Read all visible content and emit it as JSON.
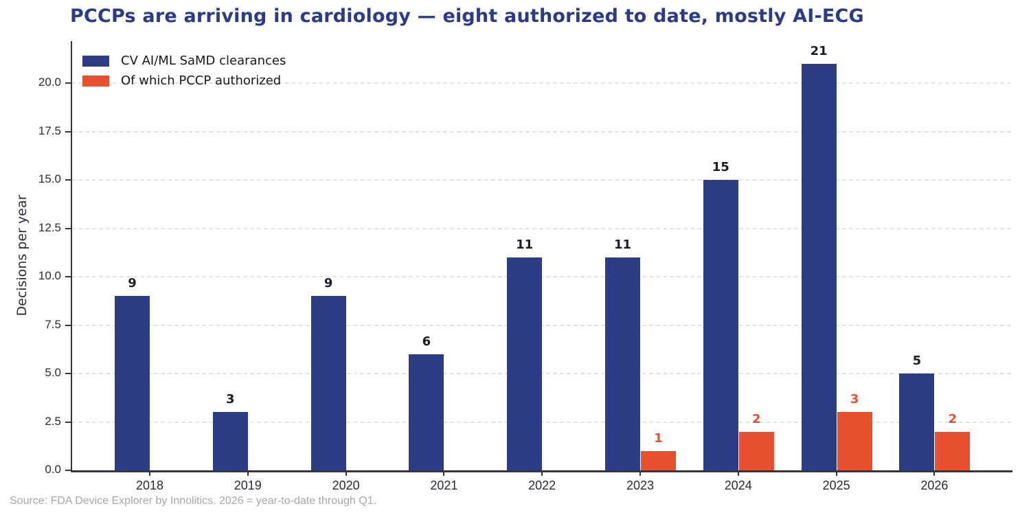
{
  "title": "PCCPs are arriving in cardiology — eight authorized to date, mostly AI-ECG",
  "source_note": "Source: FDA Device Explorer by Innolitics. 2026 = year-to-date through Q1.",
  "legend": {
    "items": [
      {
        "label": "CV AI/ML SaMD clearances",
        "color": "#2c3c85"
      },
      {
        "label": "Of which PCCP authorized",
        "color": "#e8502f"
      }
    ]
  },
  "chart_data": {
    "type": "bar",
    "title": "PCCPs are arriving in cardiology — eight authorized to date, mostly AI-ECG",
    "xlabel": "",
    "ylabel": "Decisions per year",
    "categories": [
      "2018",
      "2019",
      "2020",
      "2021",
      "2022",
      "2023",
      "2024",
      "2025",
      "2026"
    ],
    "series": [
      {
        "name": "CV AI/ML SaMD clearances",
        "color": "#2c3c85",
        "values": [
          9,
          3,
          9,
          6,
          11,
          11,
          15,
          21,
          5
        ]
      },
      {
        "name": "Of which PCCP authorized",
        "color": "#e8502f",
        "values": [
          0,
          0,
          0,
          0,
          0,
          1,
          2,
          3,
          2
        ]
      }
    ],
    "bar_value_labels_shown": true,
    "ylim": [
      0,
      21.5
    ],
    "yticks": [
      "0.0",
      "2.5",
      "5.0",
      "7.5",
      "10.0",
      "12.5",
      "15.0",
      "17.5",
      "20.0"
    ],
    "grid": "horizontal dashed",
    "legend_position": "upper left",
    "annotation_note": "Zero-value PCCP bars (2018–2022) are not drawn"
  },
  "colors": {
    "title": "#2b3a8c",
    "axis_spine": "#33343f",
    "tick_label": "#262b36",
    "value_label": "#191d2b",
    "grid": "#e3e3e3",
    "source": "#a3a8ad",
    "background": "#ffffff"
  }
}
